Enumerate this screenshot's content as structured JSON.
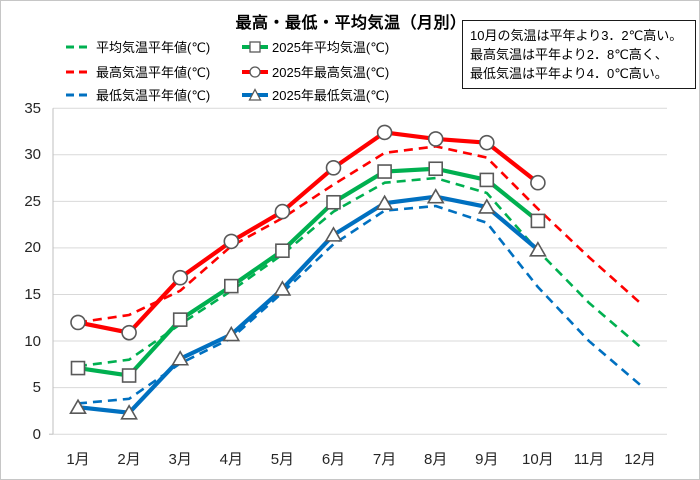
{
  "annotation": {
    "lines": [
      "10月の気温は平年より3．2℃高い。",
      "最高気温は平年より2．8℃高く、",
      "最低気温は平年より4．0℃高い。"
    ]
  },
  "colors": {
    "green": "#00B050",
    "red": "#FF0000",
    "blue": "#0070C0",
    "grid": "#D9D9D9",
    "axis": "#BFBFBF",
    "marker_stroke": "#595959",
    "tick_text": "#262626"
  },
  "chart_data": {
    "type": "line",
    "title": "最高・最低・平均気温（月別）",
    "categories": [
      "1月",
      "2月",
      "3月",
      "4月",
      "5月",
      "6月",
      "7月",
      "8月",
      "9月",
      "10月",
      "11月",
      "12月"
    ],
    "ylim": [
      0,
      35
    ],
    "ytick_interval": 5,
    "yticks": [
      0,
      5,
      10,
      15,
      20,
      25,
      30,
      35
    ],
    "grid": true,
    "legend_position": "top-left",
    "series": [
      {
        "name": "平均気温平年値(℃)",
        "color": "#00B050",
        "style": "dashed",
        "marker": "none",
        "values": [
          7.3,
          8.0,
          11.8,
          15.4,
          19.3,
          23.9,
          27.0,
          27.5,
          25.9,
          19.7,
          14.1,
          9.4
        ]
      },
      {
        "name": "2025年平均気温(℃)",
        "color": "#00B050",
        "style": "solid",
        "marker": "square",
        "values": [
          7.1,
          6.3,
          12.3,
          15.9,
          19.7,
          24.9,
          28.2,
          28.5,
          27.3,
          22.9
        ]
      },
      {
        "name": "最高気温平年値(℃)",
        "color": "#FF0000",
        "style": "dashed",
        "marker": "none",
        "values": [
          12.0,
          12.8,
          15.4,
          20.2,
          23.2,
          26.8,
          30.2,
          30.9,
          29.7,
          24.2,
          19.0,
          14.1
        ]
      },
      {
        "name": "2025年最高気温(℃)",
        "color": "#FF0000",
        "style": "solid",
        "marker": "circle",
        "values": [
          12.0,
          10.9,
          16.8,
          20.7,
          23.9,
          28.6,
          32.4,
          31.7,
          31.3,
          27.0
        ]
      },
      {
        "name": "最低気温平年値(℃)",
        "color": "#0070C0",
        "style": "dashed",
        "marker": "none",
        "values": [
          3.3,
          3.8,
          7.6,
          10.3,
          15.2,
          20.4,
          24.0,
          24.5,
          22.7,
          15.8,
          10.0,
          5.3
        ]
      },
      {
        "name": "2025年最低気温(℃)",
        "color": "#0070C0",
        "style": "solid",
        "marker": "triangle",
        "values": [
          2.9,
          2.3,
          8.1,
          10.7,
          15.6,
          21.4,
          24.8,
          25.5,
          24.4,
          19.8
        ]
      }
    ]
  }
}
